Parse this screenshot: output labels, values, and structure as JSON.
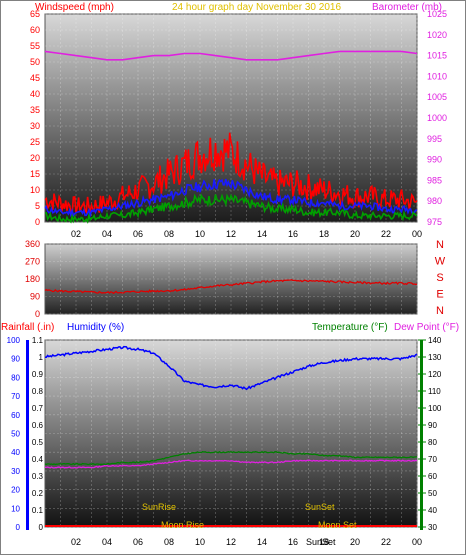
{
  "colors": {
    "windspeed": "#ff0000",
    "windspeed_avg": "#1a1aff",
    "windspeed_low": "#00a000",
    "barometer": "#e020e0",
    "direction": "#e00000",
    "rainfall": "#ff0000",
    "humidity": "#0000ff",
    "temperature": "#008000",
    "dewpoint": "#e020e0",
    "sun_moon_labels": "#e0c000",
    "title": "#e0c000"
  },
  "panels": {
    "top": {
      "left_label": "Windspeed (mph)",
      "title": "24 hour graph day   November 30 2016",
      "right_label": "Barometer (mb)",
      "left_ticks": [
        "0",
        "5",
        "10",
        "15",
        "20",
        "25",
        "30",
        "35",
        "40",
        "45",
        "50",
        "55",
        "60",
        "65"
      ],
      "right_ticks": [
        "975",
        "980",
        "985",
        "990",
        "995",
        "1000",
        "1005",
        "1010",
        "1015",
        "1020",
        "1025"
      ]
    },
    "middle": {
      "left_ticks": [
        "0",
        "90",
        "180",
        "270",
        "360"
      ],
      "right_letters": [
        "N",
        "W",
        "S",
        "E",
        "N"
      ]
    },
    "bottom": {
      "rain_label": "Rainfall (.in)",
      "humidity_label": "Humidity (%)",
      "temperature_label": "Temperature (°F)",
      "dewpoint_label": "Dew Point (°F)",
      "humidity_ticks": [
        "0",
        "10",
        "20",
        "30",
        "40",
        "50",
        "60",
        "70",
        "80",
        "90",
        "100"
      ],
      "rain_ticks": [
        "0",
        "0.1",
        "0.2",
        "0.3",
        "0.4",
        "0.5",
        "0.6",
        "0.7",
        "0.8",
        "0.9",
        "1",
        "1.1"
      ],
      "temp_ticks": [
        "30",
        "40",
        "50",
        "60",
        "70",
        "80",
        "90",
        "100",
        "110",
        "120",
        "130",
        "140"
      ],
      "sunrise_label": "SunRise",
      "sunset_label": "SunSet",
      "moonrise_label": "Moon Rise",
      "moonset_label": "Moon Set",
      "sunset_axis_label": "SunSet"
    }
  },
  "x_ticks": [
    "02",
    "04",
    "06",
    "08",
    "10",
    "12",
    "14",
    "16",
    "18",
    "20",
    "22",
    "00"
  ],
  "chart_data": [
    {
      "type": "line",
      "title": "24 hour graph day   November 30 2016",
      "xlabel": "",
      "ylabel": "Windspeed (mph)",
      "y2label": "Barometer (mb)",
      "x": [
        0,
        1,
        2,
        3,
        4,
        5,
        6,
        7,
        8,
        9,
        10,
        11,
        12,
        13,
        14,
        15,
        16,
        17,
        18,
        19,
        20,
        21,
        22,
        23,
        24
      ],
      "ylim": [
        0,
        65
      ],
      "y2lim": [
        975,
        1025
      ],
      "grid": true,
      "series": [
        {
          "name": "Windspeed (mph)",
          "axis": "left",
          "values": [
            7,
            6,
            5,
            5,
            6,
            8,
            10,
            12,
            15,
            18,
            21,
            23,
            22,
            18,
            14,
            12,
            12,
            11,
            10,
            9,
            8,
            8,
            7,
            7,
            6
          ]
        },
        {
          "name": "",
          "axis": "left",
          "values": [
            4,
            3,
            3,
            3,
            4,
            5,
            6,
            7,
            8,
            10,
            11,
            12,
            12,
            10,
            8,
            7,
            7,
            6,
            6,
            5,
            5,
            5,
            4,
            4,
            4
          ]
        },
        {
          "name": "",
          "axis": "left",
          "values": [
            2,
            1,
            1,
            1,
            2,
            2,
            3,
            4,
            5,
            6,
            7,
            7,
            7,
            6,
            5,
            4,
            4,
            3,
            3,
            3,
            2,
            2,
            2,
            2,
            2
          ]
        },
        {
          "name": "Barometer (mb)",
          "axis": "right",
          "values": [
            1016,
            1015.5,
            1015,
            1014.5,
            1014,
            1014,
            1014.5,
            1015,
            1015,
            1015.5,
            1015.5,
            1015,
            1014.5,
            1014,
            1014,
            1014,
            1014.5,
            1015,
            1015.5,
            1016,
            1016,
            1016,
            1016,
            1016,
            1015.5
          ]
        }
      ]
    },
    {
      "type": "line",
      "title": "",
      "xlabel": "",
      "ylabel": "",
      "x": [
        0,
        1,
        2,
        3,
        4,
        5,
        6,
        7,
        8,
        9,
        10,
        11,
        12,
        13,
        14,
        15,
        16,
        17,
        18,
        19,
        20,
        21,
        22,
        23,
        24
      ],
      "ylim": [
        0,
        360
      ],
      "grid": true,
      "series": [
        {
          "name": "",
          "values": [
            122,
            118,
            115,
            112,
            110,
            112,
            115,
            118,
            120,
            125,
            135,
            145,
            150,
            158,
            165,
            170,
            172,
            170,
            168,
            165,
            162,
            160,
            158,
            158,
            156
          ]
        }
      ]
    },
    {
      "type": "line",
      "title": "",
      "xlabel": "",
      "ylabel": "Humidity (%)",
      "y2label": "Temperature (°F)",
      "x": [
        0,
        1,
        2,
        3,
        4,
        5,
        6,
        7,
        8,
        9,
        10,
        11,
        12,
        13,
        14,
        15,
        16,
        17,
        18,
        19,
        20,
        21,
        22,
        23,
        24
      ],
      "ylim": [
        0,
        100
      ],
      "y2lim": [
        30,
        140
      ],
      "grid": true,
      "series": [
        {
          "name": "Humidity (%)",
          "axis": "left",
          "values": [
            91,
            92,
            93,
            94,
            95,
            96,
            95,
            93,
            86,
            78,
            76,
            75,
            76,
            74,
            77,
            80,
            83,
            86,
            88,
            89,
            90,
            90,
            90,
            90,
            92
          ]
        },
        {
          "name": "Temperature (°F)",
          "axis": "right",
          "values": [
            67,
            67,
            67,
            67,
            67,
            68,
            68,
            69,
            71,
            73,
            74,
            74,
            74,
            74,
            74,
            74,
            73,
            73,
            72,
            72,
            71,
            71,
            71,
            71,
            71
          ]
        },
        {
          "name": "Dew Point (°F)",
          "axis": "right",
          "values": [
            65,
            65,
            65,
            65,
            66,
            66,
            66,
            67,
            68,
            69,
            69,
            69,
            69,
            68,
            68,
            68,
            69,
            69,
            69,
            69,
            69,
            69,
            69,
            69,
            69
          ]
        },
        {
          "name": "Rainfall (.in)",
          "axis": "left",
          "values": [
            0,
            0,
            0,
            0,
            0,
            0,
            0,
            0,
            0,
            0,
            0,
            0,
            0,
            0,
            0,
            0,
            0,
            0,
            0,
            0,
            0,
            0,
            0,
            0,
            0
          ]
        }
      ]
    }
  ]
}
